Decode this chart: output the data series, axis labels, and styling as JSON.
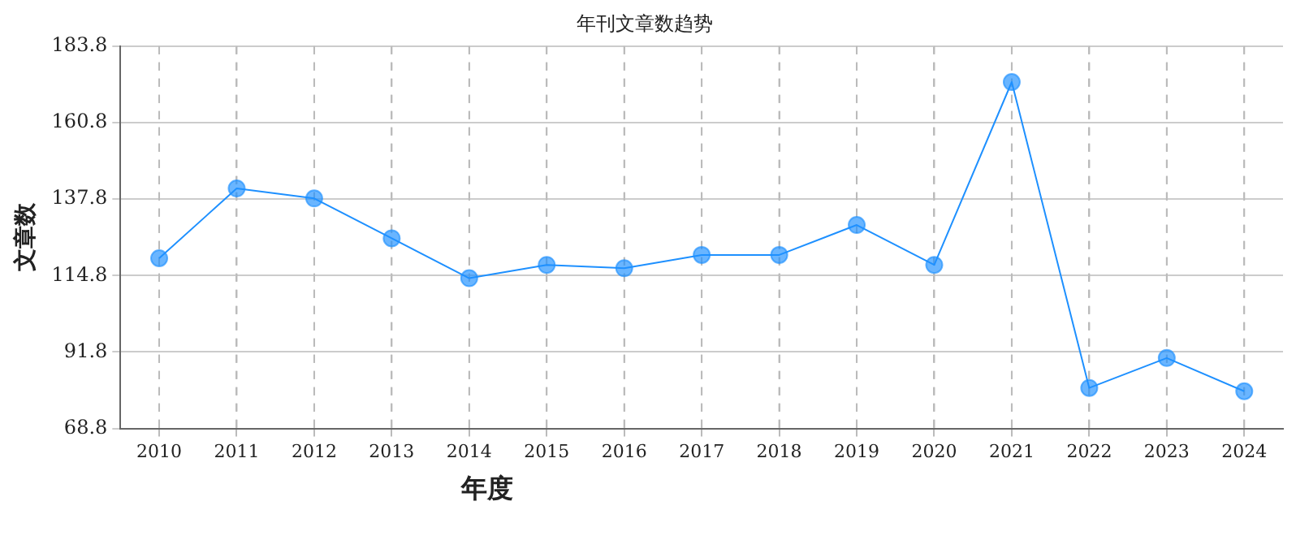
{
  "chart_data": {
    "type": "line",
    "title": "年刊文章数趋势",
    "xlabel": "年度",
    "ylabel": "文章数",
    "categories": [
      "2010",
      "2011",
      "2012",
      "2013",
      "2014",
      "2015",
      "2016",
      "2017",
      "2018",
      "2019",
      "2020",
      "2021",
      "2022",
      "2023",
      "2024"
    ],
    "series": [
      {
        "color": "#1e90ff",
        "values": [
          120,
          141,
          138,
          126,
          114,
          118,
          117,
          121,
          121,
          130,
          118,
          173,
          81,
          90,
          80
        ]
      }
    ],
    "ylim": [
      68.8,
      183.8
    ],
    "yticks": [
      68.8,
      91.8,
      114.8,
      137.8,
      160.8,
      183.8
    ],
    "grid": true,
    "marker": "circle",
    "line_style": "solid",
    "legend": false
  }
}
